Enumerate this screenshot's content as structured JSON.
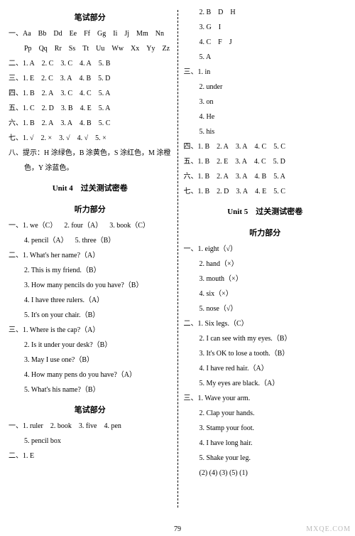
{
  "left": {
    "section_title_1": "笔试部分",
    "row1_label": "一、",
    "row1_items": [
      "Aa",
      "Bb",
      "Dd",
      "Ee",
      "Ff",
      "Gg",
      "Ii",
      "Jj",
      "Mm",
      "Nn"
    ],
    "row1b_items": [
      "Pp",
      "Qq",
      "Rr",
      "Ss",
      "Tt",
      "Uu",
      "Ww",
      "Xx",
      "Yy",
      "Zz"
    ],
    "row2_label": "二、",
    "row2_ans": [
      "1. A",
      "2. C",
      "3. C",
      "4. A",
      "5. B"
    ],
    "row3_label": "三、",
    "row3_ans": [
      "1. E",
      "2. C",
      "3. A",
      "4. B",
      "5. D"
    ],
    "row4_label": "四、",
    "row4_ans": [
      "1. B",
      "2. A",
      "3. C",
      "4. C",
      "5. A"
    ],
    "row5_label": "五、",
    "row5_ans": [
      "1. C",
      "2. D",
      "3. B",
      "4. E",
      "5. A"
    ],
    "row6_label": "六、",
    "row6_ans": [
      "1. B",
      "2. A",
      "3. A",
      "4. B",
      "5. C"
    ],
    "row7_label": "七、",
    "row7_ans": [
      "1. √",
      "2. ×",
      "3. √",
      "4. √",
      "5. ×"
    ],
    "row8_label": "八、",
    "row8_text1": "提示：H 涂绿色，B 涂黄色，S 涂红色，M 涂橙",
    "row8_text2": "色，Y 涂蓝色。",
    "unit4_title": "Unit 4　过关测试密卷",
    "listening_title": "听力部分",
    "l1_label": "一、",
    "l1_items_r1": [
      "1. we（C）",
      "2. four（A）",
      "3. book（C）"
    ],
    "l1_items_r2": [
      "4. pencil（A）",
      "5. three（B）"
    ],
    "l2_label": "二、",
    "l2_items": [
      "1. What's her name?（A）",
      "2. This is my friend.（B）",
      "3. How many pencils do you have?（B）",
      "4. I have three rulers.（A）",
      "5. It's on your chair.（B）"
    ],
    "l3_label": "三、",
    "l3_items": [
      "1. Where is the cap?（A）",
      "2. Is it under your desk?（B）",
      "3. May I use one?（B）",
      "4. How many pens do you have?（A）",
      "5. What's his name?（B）"
    ],
    "section_title_2": "笔试部分",
    "w1_label": "一、",
    "w1_items_r1": [
      "1. ruler",
      "2. book",
      "3. five",
      "4. pen"
    ],
    "w1_items_r2": [
      "5. pencil box"
    ],
    "w2_label": "二、",
    "w2_ans": "1. E"
  },
  "right": {
    "top_items": [
      "2. B　D　H",
      "3. G　I",
      "4. C　F　J",
      "5. A"
    ],
    "r3_label": "三、",
    "r3_items": [
      "1. in",
      "2. under",
      "3. on",
      "4. He",
      "5. his"
    ],
    "r4_label": "四、",
    "r4_ans": [
      "1. B",
      "2. A",
      "3. A",
      "4. C",
      "5. C"
    ],
    "r5_label": "五、",
    "r5_ans": [
      "1. B",
      "2. E",
      "3. A",
      "4. C",
      "5. D"
    ],
    "r6_label": "六、",
    "r6_ans": [
      "1. B",
      "2. A",
      "3. A",
      "4. B",
      "5. A"
    ],
    "r7_label": "七、",
    "r7_ans": [
      "1. B",
      "2. D",
      "3. A",
      "4. E",
      "5. C"
    ],
    "unit5_title": "Unit 5　过关测试密卷",
    "listening_title": "听力部分",
    "ru1_label": "一、",
    "ru1_items": [
      "1. eight（√）",
      "2. hand（×）",
      "3. mouth（×）",
      "4. six（×）",
      "5. nose（√）"
    ],
    "ru2_label": "二、",
    "ru2_items": [
      "1. Six legs.（C）",
      "2. I can see with my eyes.（B）",
      "3. It's OK to lose a tooth.（B）",
      "4. I have red hair.（A）",
      "5. My eyes are black.（A）"
    ],
    "ru3_label": "三、",
    "ru3_items": [
      "1. Wave your arm.",
      "2. Clap your hands.",
      "3. Stamp your foot.",
      "4. I have long hair.",
      "5. Shake your leg."
    ],
    "ru3_seq": "(2) (4) (3) (5) (1)"
  },
  "page_num": "79",
  "watermark": "MXQE.COM"
}
